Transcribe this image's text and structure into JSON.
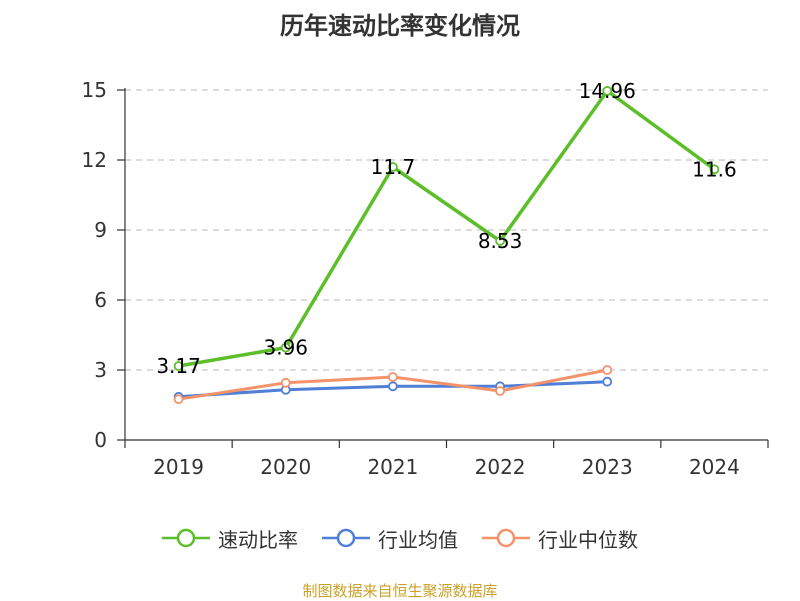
{
  "chart_data": {
    "type": "line",
    "title": "历年速动比率变化情况",
    "categories": [
      "2019",
      "2020",
      "2021",
      "2022",
      "2023",
      "2024"
    ],
    "ylim": [
      0,
      15
    ],
    "yticks": [
      0,
      3,
      6,
      9,
      12,
      15
    ],
    "grid": true,
    "legend_position": "bottom",
    "series": [
      {
        "name": "速动比率",
        "color": "#5cbf2a",
        "values": [
          3.17,
          3.96,
          11.7,
          8.53,
          14.96,
          11.6
        ],
        "labels": [
          "3.17",
          "3.96",
          "11.7",
          "8.53",
          "14.96",
          "11.6"
        ]
      },
      {
        "name": "行业均值",
        "color": "#4f7fd6",
        "values": [
          1.85,
          2.15,
          2.3,
          2.3,
          2.5,
          null
        ]
      },
      {
        "name": "行业中位数",
        "color": "#f4936a",
        "values": [
          1.75,
          2.45,
          2.7,
          2.1,
          3.0,
          null
        ]
      }
    ]
  },
  "source": "制图数据来自恒生聚源数据库"
}
